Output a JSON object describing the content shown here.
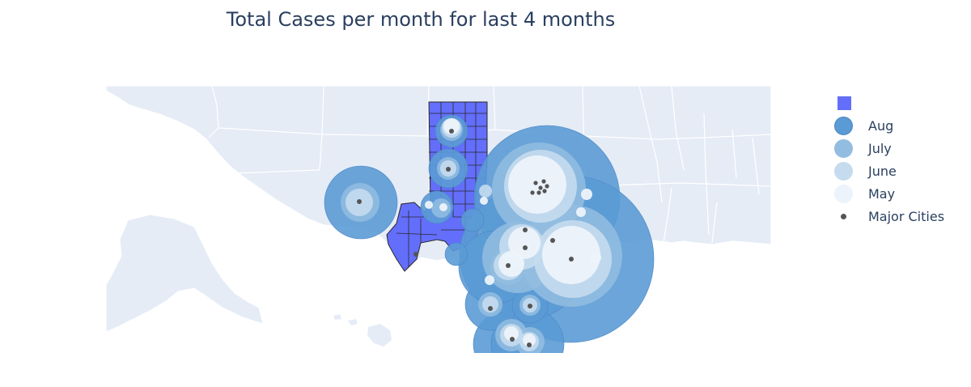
{
  "title": "Total Cases per month for last 4 months",
  "colors": {
    "land": "#e5ecf6",
    "border": "#ffffff",
    "county_fill": "#636efa",
    "county_outline": "#2a2a2a",
    "aug": "#5b9bd5",
    "july": "#93bde0",
    "june": "#c5dcee",
    "may": "#edf3fb",
    "city": "#555555",
    "text": "#2a3f5f"
  },
  "legend": [
    {
      "key": "counties",
      "label": "",
      "symbol": "square"
    },
    {
      "key": "aug",
      "label": "Aug",
      "symbol": "circle"
    },
    {
      "key": "july",
      "label": "July",
      "symbol": "circle"
    },
    {
      "key": "june",
      "label": "June",
      "symbol": "circle"
    },
    {
      "key": "may",
      "label": "May",
      "symbol": "circle"
    },
    {
      "key": "city",
      "label": "Major Cities",
      "symbol": "dot"
    }
  ]
}
